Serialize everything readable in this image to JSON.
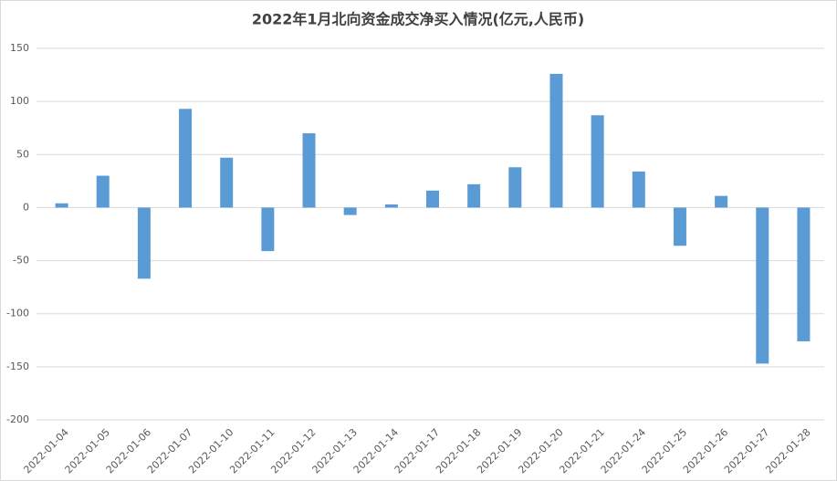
{
  "chart_data": {
    "type": "bar",
    "title": "2022年1月北向资金成交净买入情况(亿元,人民币)",
    "categories": [
      "2022-01-04",
      "2022-01-05",
      "2022-01-06",
      "2022-01-07",
      "2022-01-10",
      "2022-01-11",
      "2022-01-12",
      "2022-01-13",
      "2022-01-14",
      "2022-01-17",
      "2022-01-18",
      "2022-01-19",
      "2022-01-20",
      "2022-01-21",
      "2022-01-24",
      "2022-01-25",
      "2022-01-26",
      "2022-01-27",
      "2022-01-28"
    ],
    "values": [
      4,
      30,
      -67,
      93,
      47,
      -41,
      70,
      -7,
      3,
      16,
      22,
      38,
      126,
      87,
      34,
      -36,
      11,
      -147,
      -126
    ],
    "color": "#5b9bd5",
    "ylim": [
      -200,
      150
    ],
    "yticks": [
      -200,
      -150,
      -100,
      -50,
      0,
      50,
      100,
      150
    ],
    "grid": true
  }
}
